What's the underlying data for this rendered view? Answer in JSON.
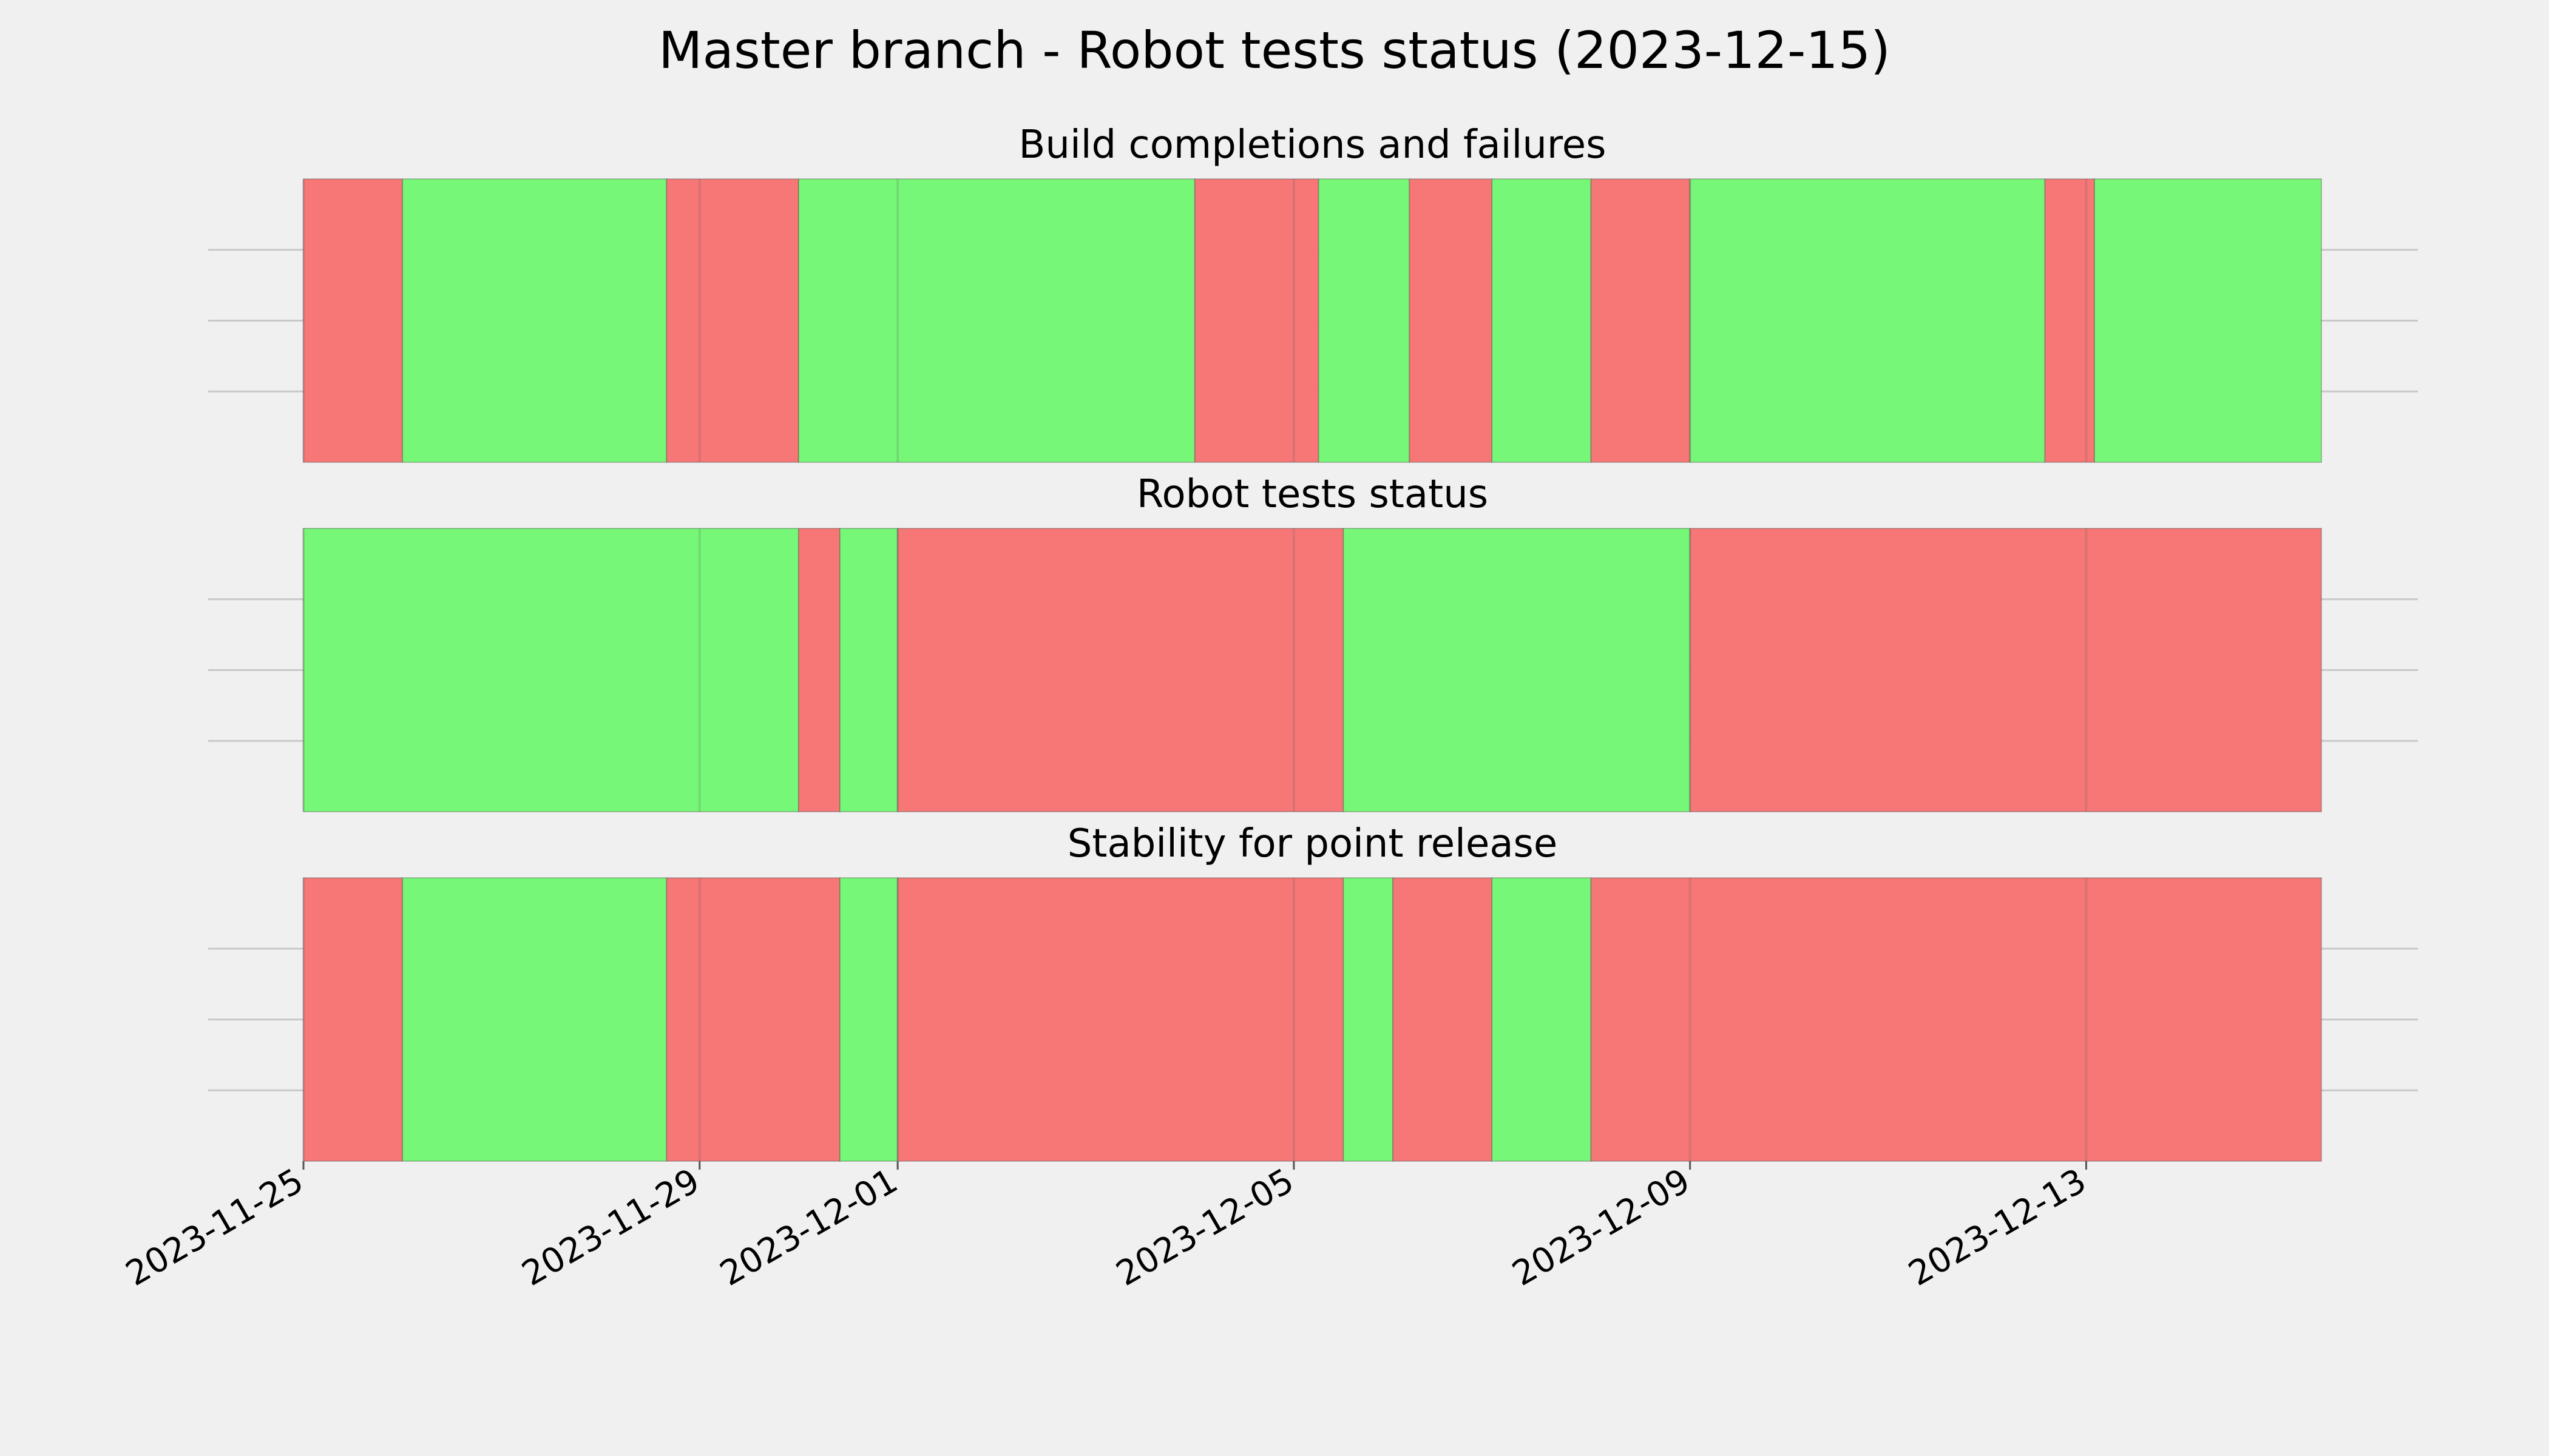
{
  "chart_data": {
    "type": "timeline",
    "title": "Master branch - Robot tests status (2023-12-15)",
    "x_axis": {
      "type": "date",
      "range": [
        "2023-11-25",
        "2023-12-15 09:00"
      ],
      "tick_labels": [
        "2023-11-25",
        "2023-11-29",
        "2023-12-01",
        "2023-12-05",
        "2023-12-09",
        "2023-12-13"
      ]
    },
    "grid": true,
    "colors": {
      "pass": "#77f777",
      "fail": "#f77777",
      "background": "#f0f0f0",
      "grid": "#c8c8c8"
    },
    "panels": [
      {
        "title": "Build completions and failures",
        "segments": [
          {
            "start": "2023-11-25 00:00",
            "end": "2023-11-26 00:00",
            "status": "fail"
          },
          {
            "start": "2023-11-26 00:00",
            "end": "2023-11-28 16:00",
            "status": "pass"
          },
          {
            "start": "2023-11-28 16:00",
            "end": "2023-11-30 00:00",
            "status": "fail"
          },
          {
            "start": "2023-11-30 00:00",
            "end": "2023-12-04 00:00",
            "status": "pass"
          },
          {
            "start": "2023-12-04 00:00",
            "end": "2023-12-05 06:00",
            "status": "fail"
          },
          {
            "start": "2023-12-05 06:00",
            "end": "2023-12-06 04:00",
            "status": "pass"
          },
          {
            "start": "2023-12-06 04:00",
            "end": "2023-12-07 00:00",
            "status": "fail"
          },
          {
            "start": "2023-12-07 00:00",
            "end": "2023-12-08 00:00",
            "status": "pass"
          },
          {
            "start": "2023-12-08 00:00",
            "end": "2023-12-09 00:00",
            "status": "fail"
          },
          {
            "start": "2023-12-09 00:00",
            "end": "2023-12-12 14:00",
            "status": "pass"
          },
          {
            "start": "2023-12-12 14:00",
            "end": "2023-12-13 02:00",
            "status": "fail"
          },
          {
            "start": "2023-12-13 02:00",
            "end": "2023-12-15 09:00",
            "status": "pass"
          }
        ]
      },
      {
        "title": "Robot tests status",
        "segments": [
          {
            "start": "2023-11-25 00:00",
            "end": "2023-11-30 00:00",
            "status": "pass"
          },
          {
            "start": "2023-11-30 00:00",
            "end": "2023-11-30 10:00",
            "status": "fail"
          },
          {
            "start": "2023-11-30 10:00",
            "end": "2023-12-01 00:00",
            "status": "pass"
          },
          {
            "start": "2023-12-01 00:00",
            "end": "2023-12-05 12:00",
            "status": "fail"
          },
          {
            "start": "2023-12-05 12:00",
            "end": "2023-12-09 00:00",
            "status": "pass"
          },
          {
            "start": "2023-12-09 00:00",
            "end": "2023-12-15 09:00",
            "status": "fail"
          }
        ]
      },
      {
        "title": "Stability for point release",
        "segments": [
          {
            "start": "2023-11-25 00:00",
            "end": "2023-11-26 00:00",
            "status": "fail"
          },
          {
            "start": "2023-11-26 00:00",
            "end": "2023-11-28 16:00",
            "status": "pass"
          },
          {
            "start": "2023-11-28 16:00",
            "end": "2023-11-30 10:00",
            "status": "fail"
          },
          {
            "start": "2023-11-30 10:00",
            "end": "2023-12-01 00:00",
            "status": "pass"
          },
          {
            "start": "2023-12-01 00:00",
            "end": "2023-12-05 12:00",
            "status": "fail"
          },
          {
            "start": "2023-12-05 12:00",
            "end": "2023-12-06 00:00",
            "status": "pass"
          },
          {
            "start": "2023-12-06 00:00",
            "end": "2023-12-07 00:00",
            "status": "fail"
          },
          {
            "start": "2023-12-07 00:00",
            "end": "2023-12-08 00:00",
            "status": "pass"
          },
          {
            "start": "2023-12-08 00:00",
            "end": "2023-12-15 09:00",
            "status": "fail"
          }
        ]
      }
    ]
  }
}
